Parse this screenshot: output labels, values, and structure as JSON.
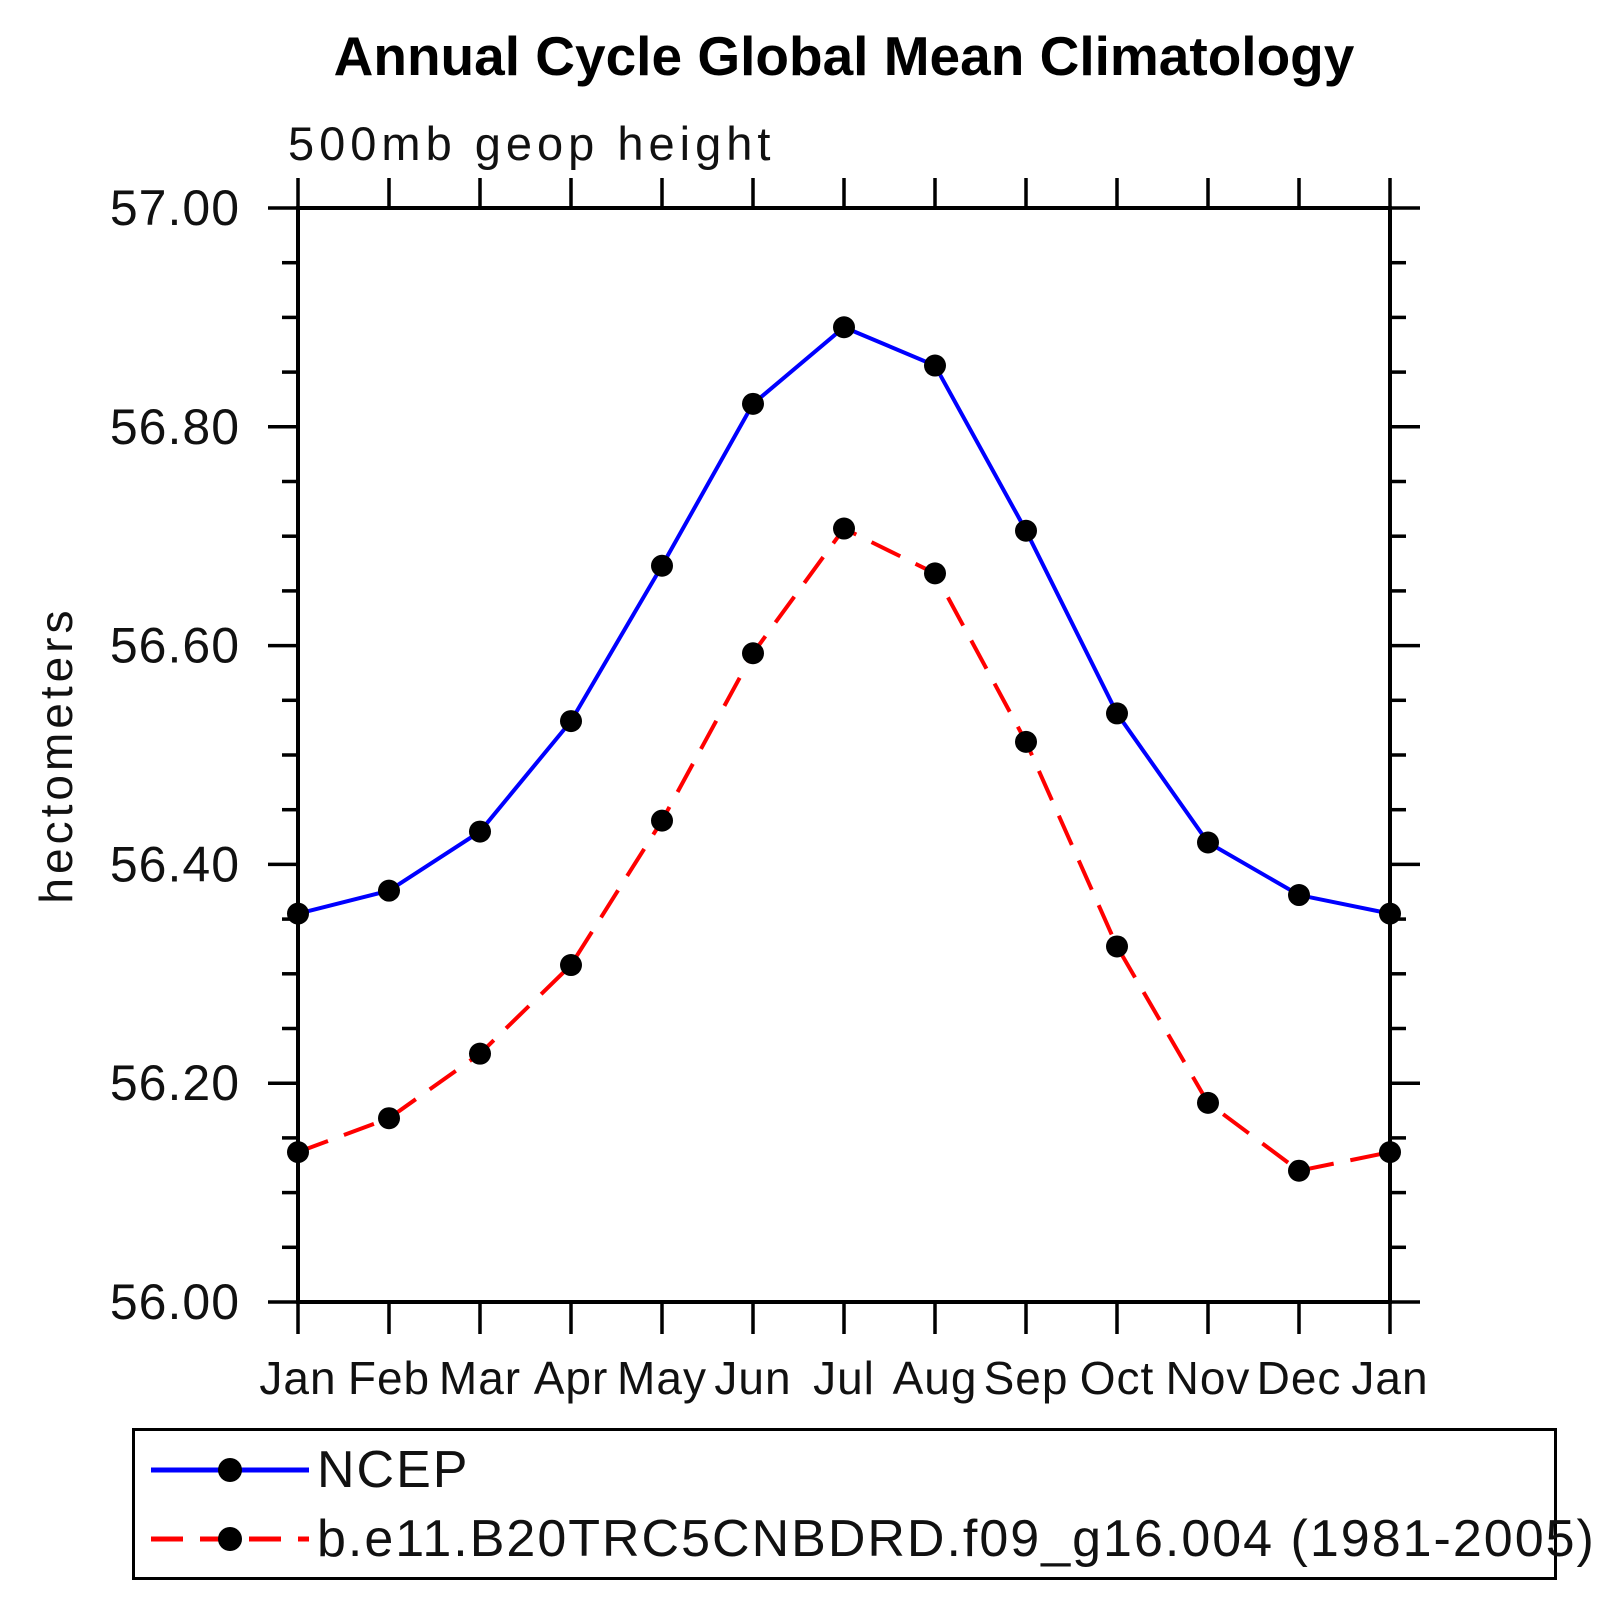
{
  "title": "Annual Cycle Global Mean Climatology",
  "subtitle": "500mb geop height",
  "legend": {
    "entries": [
      {
        "label": "NCEP",
        "color": "#0000ff",
        "style": "solid"
      },
      {
        "label": "b.e11.B20TRC5CNBDRD.f09_g16.004 (1981-2005)",
        "color": "#ff0000",
        "style": "dashed"
      }
    ]
  },
  "chart_data": {
    "type": "line",
    "title": "Annual Cycle Global Mean Climatology",
    "subtitle": "500mb geop height",
    "xlabel": "",
    "ylabel": "hectometers",
    "categories": [
      "Jan",
      "Feb",
      "Mar",
      "Apr",
      "May",
      "Jun",
      "Jul",
      "Aug",
      "Sep",
      "Oct",
      "Nov",
      "Dec",
      "Jan"
    ],
    "ylim": [
      56.0,
      57.0
    ],
    "ytick_major": 0.2,
    "ytick_minor": 0.05,
    "ytick_label_format": "2dp",
    "grid": false,
    "legend_position": "bottom",
    "marker": "filled-circle",
    "marker_color": "#000000",
    "axis_color": "#000000",
    "series": [
      {
        "name": "NCEP",
        "color": "#0000ff",
        "dash": "solid",
        "values": [
          56.355,
          56.376,
          56.43,
          56.531,
          56.673,
          56.821,
          56.891,
          56.856,
          56.705,
          56.538,
          56.42,
          56.372,
          56.355
        ]
      },
      {
        "name": "b.e11.B20TRC5CNBDRD.f09_g16.004 (1981-2005)",
        "color": "#ff0000",
        "dash": "dashed",
        "values": [
          56.137,
          56.168,
          56.227,
          56.308,
          56.44,
          56.593,
          56.707,
          56.666,
          56.512,
          56.325,
          56.182,
          56.12,
          56.137
        ]
      }
    ]
  }
}
